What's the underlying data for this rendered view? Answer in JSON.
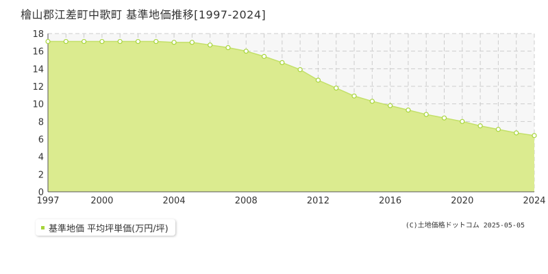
{
  "title": "檜山郡江差町中歌町 基準地価推移[1997-2024]",
  "legend": {
    "label": "基準地価 平均坪単価(万円/坪)"
  },
  "copyright": "(C)土地価格ドットコム 2025-05-05",
  "colors": {
    "fill": "#dbeb8f",
    "line": "#c3e069",
    "marker": "#a6d43a",
    "grid": "#cccccc",
    "axis": "#555555",
    "background_future": "#f7f7f7"
  },
  "chart_data": {
    "type": "area",
    "x": [
      1997,
      1998,
      1999,
      2000,
      2001,
      2002,
      2003,
      2004,
      2005,
      2006,
      2007,
      2008,
      2009,
      2010,
      2011,
      2012,
      2013,
      2014,
      2015,
      2016,
      2017,
      2018,
      2019,
      2020,
      2021,
      2022,
      2023,
      2024
    ],
    "series": [
      {
        "name": "基準地価 平均坪単価(万円/坪)",
        "values": [
          17.1,
          17.1,
          17.1,
          17.1,
          17.1,
          17.1,
          17.1,
          17.0,
          17.0,
          16.7,
          16.4,
          16.0,
          15.4,
          14.7,
          13.9,
          12.7,
          11.8,
          10.9,
          10.3,
          9.8,
          9.3,
          8.8,
          8.4,
          8.0,
          7.5,
          7.1,
          6.7,
          6.4
        ]
      }
    ],
    "xlim": [
      1997,
      2024
    ],
    "ylim": [
      0,
      18
    ],
    "x_ticks": [
      "1997",
      "2000",
      "2004",
      "2008",
      "2012",
      "2016",
      "2020",
      "2024"
    ],
    "y_ticks": [
      "0",
      "2",
      "4",
      "6",
      "8",
      "10",
      "12",
      "14",
      "16",
      "18"
    ],
    "grid": true,
    "legend_position": "bottom-left"
  }
}
